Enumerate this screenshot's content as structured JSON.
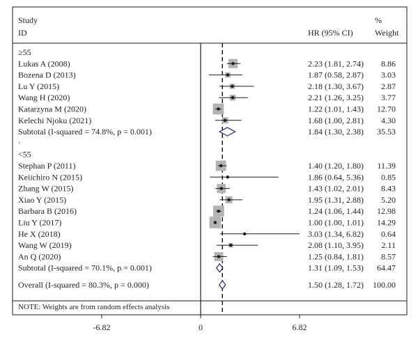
{
  "header": {
    "study_line1": "Study",
    "study_line2": "ID",
    "effect_label": "HR (95% CI)",
    "weight_line1": "%",
    "weight_line2": "Weight"
  },
  "note": "NOTE: Weights are from random effects analysis",
  "colors": {
    "box": "#b3b3b3",
    "point": "#1a1a1a",
    "ci_line": "#1a1a1a",
    "diamond": "#1f2a6b",
    "reference_line": "#1a1a1a",
    "text": "#222222"
  },
  "chart_data": {
    "type": "forest",
    "x_axis": {
      "ticks": [
        -6.82,
        0,
        6.82
      ],
      "tick_labels": [
        "-6.82",
        "0",
        "6.82"
      ],
      "range": [
        -6.82,
        6.82
      ]
    },
    "overall_line_x": 1.5,
    "groups": [
      {
        "label": "≥55",
        "studies": [
          {
            "id": "Lukas A (2008)",
            "hr": 2.23,
            "lo": 1.81,
            "hi": 2.74,
            "label": "2.23 (1.81, 2.74)",
            "weight": "8.86",
            "w": 8.86
          },
          {
            "id": "Bozena D (2013)",
            "hr": 1.87,
            "lo": 0.58,
            "hi": 2.87,
            "label": "1.87 (0.58, 2.87)",
            "weight": "3.03",
            "w": 3.03
          },
          {
            "id": "Lu Y (2015)",
            "hr": 2.18,
            "lo": 1.3,
            "hi": 3.67,
            "label": "2.18 (1.30, 3.67)",
            "weight": "2.87",
            "w": 2.87
          },
          {
            "id": "Wang H (2020)",
            "hr": 2.21,
            "lo": 1.26,
            "hi": 3.25,
            "label": "2.21 (1.26, 3.25)",
            "weight": "3.77",
            "w": 3.77
          },
          {
            "id": "Katarzyna M (2020)",
            "hr": 1.22,
            "lo": 1.01,
            "hi": 1.43,
            "label": "1.22 (1.01, 1.43)",
            "weight": "12.70",
            "w": 12.7
          },
          {
            "id": "Kelechi Njoku (2021)",
            "hr": 1.68,
            "lo": 1.0,
            "hi": 2.81,
            "label": "1.68 (1.00, 2.81)",
            "weight": "4.30",
            "w": 4.3
          }
        ],
        "subtotal": {
          "label": "Subtotal (I-squared = 74.8%, p = 0.001)",
          "hr": 1.84,
          "lo": 1.3,
          "hi": 2.38,
          "text": "1.84 (1.30, 2.38)",
          "weight": "35.53"
        }
      },
      {
        "label": "<55",
        "studies": [
          {
            "id": "Stephan P (2011)",
            "hr": 1.4,
            "lo": 1.2,
            "hi": 1.8,
            "label": "1.40 (1.20, 1.80)",
            "weight": "11.39",
            "w": 11.39
          },
          {
            "id": "Keiichiro N (2015)",
            "hr": 1.86,
            "lo": 0.64,
            "hi": 5.36,
            "label": "1.86 (0.64, 5.36)",
            "weight": "0.85",
            "w": 0.85
          },
          {
            "id": "Zhang W (2015)",
            "hr": 1.43,
            "lo": 1.02,
            "hi": 2.01,
            "label": "1.43 (1.02, 2.01)",
            "weight": "8.43",
            "w": 8.43
          },
          {
            "id": "Xiao Y (2015)",
            "hr": 1.95,
            "lo": 1.31,
            "hi": 2.88,
            "label": "1.95 (1.31, 2.88)",
            "weight": "5.20",
            "w": 5.2
          },
          {
            "id": "Barbara B (2016)",
            "hr": 1.24,
            "lo": 1.06,
            "hi": 1.44,
            "label": "1.24 (1.06, 1.44)",
            "weight": "12.98",
            "w": 12.98
          },
          {
            "id": "Liu Y (2017)",
            "hr": 1.0,
            "lo": 1.0,
            "hi": 1.01,
            "label": "1.00 (1.00, 1.01)",
            "weight": "14.29",
            "w": 14.29
          },
          {
            "id": "He X (2018)",
            "hr": 3.03,
            "lo": 1.34,
            "hi": 6.82,
            "label": "3.03 (1.34, 6.82)",
            "weight": "0.64",
            "w": 0.64
          },
          {
            "id": "Wang W (2019)",
            "hr": 2.08,
            "lo": 1.1,
            "hi": 3.95,
            "label": "2.08 (1.10, 3.95)",
            "weight": "2.11",
            "w": 2.11
          },
          {
            "id": "An Q (2020)",
            "hr": 1.25,
            "lo": 0.84,
            "hi": 1.81,
            "label": "1.25 (0.84, 1.81)",
            "weight": "8.57",
            "w": 8.57
          }
        ],
        "subtotal": {
          "label": "Subtotal (I-squared = 70.1%, p = 0.001)",
          "hr": 1.31,
          "lo": 1.09,
          "hi": 1.53,
          "text": "1.31 (1.09, 1.53)",
          "weight": "64.47"
        }
      }
    ],
    "overall": {
      "label": "Overall (I-squared = 80.3%, p = 0.000)",
      "hr": 1.5,
      "lo": 1.28,
      "hi": 1.72,
      "text": "1.50 (1.28, 1.72)",
      "weight": "100.00"
    }
  }
}
